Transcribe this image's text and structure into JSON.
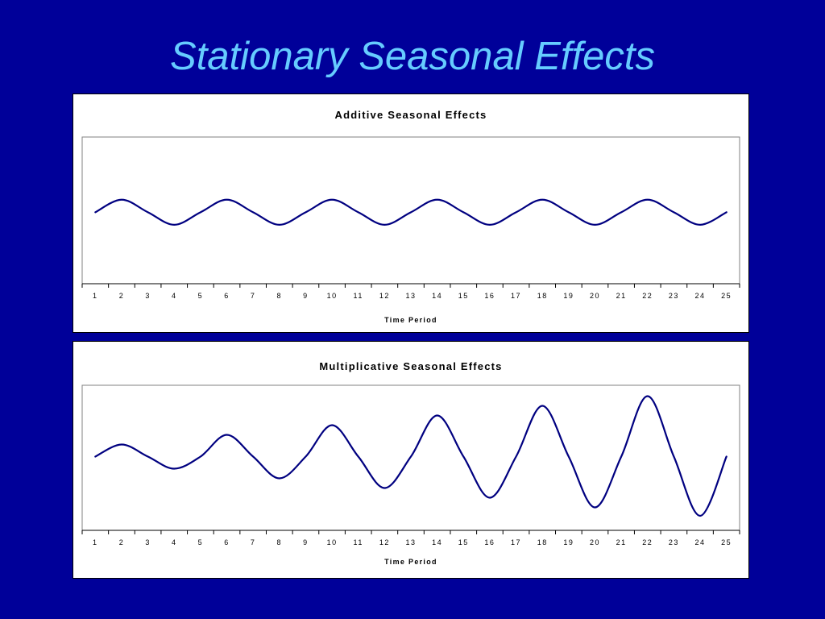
{
  "slide": {
    "title": "Stationary Seasonal Effects"
  },
  "colors": {
    "background": "#000099",
    "title": "#66ccff",
    "line": "#000080",
    "panel": "#ffffff"
  },
  "chart_data": [
    {
      "type": "line",
      "title": "Additive Seasonal Effects",
      "xlabel": "Time Period",
      "ylabel": "",
      "categories": [
        "1",
        "2",
        "3",
        "4",
        "5",
        "6",
        "7",
        "8",
        "9",
        "10",
        "11",
        "12",
        "13",
        "14",
        "15",
        "16",
        "17",
        "18",
        "19",
        "20",
        "21",
        "22",
        "23",
        "24",
        "25"
      ],
      "series": [
        {
          "values": [
            0,
            1,
            0,
            -1,
            0,
            1,
            0,
            -1,
            0,
            1,
            0,
            -1,
            0,
            1,
            0,
            -1,
            0,
            1,
            0,
            -1,
            0,
            1,
            0,
            -1,
            0
          ]
        }
      ],
      "ylim": [
        -5.7,
        6.0
      ],
      "grid": false,
      "legend": "none"
    },
    {
      "type": "line",
      "title": "Multiplicative Seasonal Effects",
      "xlabel": "Time Period",
      "ylabel": "",
      "categories": [
        "1",
        "2",
        "3",
        "4",
        "5",
        "6",
        "7",
        "8",
        "9",
        "10",
        "11",
        "12",
        "13",
        "14",
        "15",
        "16",
        "17",
        "18",
        "19",
        "20",
        "21",
        "22",
        "23",
        "24",
        "25"
      ],
      "series": [
        {
          "values": [
            0,
            1,
            0,
            -1,
            0,
            1.8,
            0,
            -1.8,
            0,
            2.6,
            0,
            -2.6,
            0,
            3.4,
            0,
            -3.4,
            0,
            4.2,
            0,
            -4.2,
            0,
            5.0,
            0,
            -4.9,
            0
          ]
        }
      ],
      "ylim": [
        -6.1,
        5.9
      ],
      "grid": false,
      "legend": "none"
    }
  ]
}
